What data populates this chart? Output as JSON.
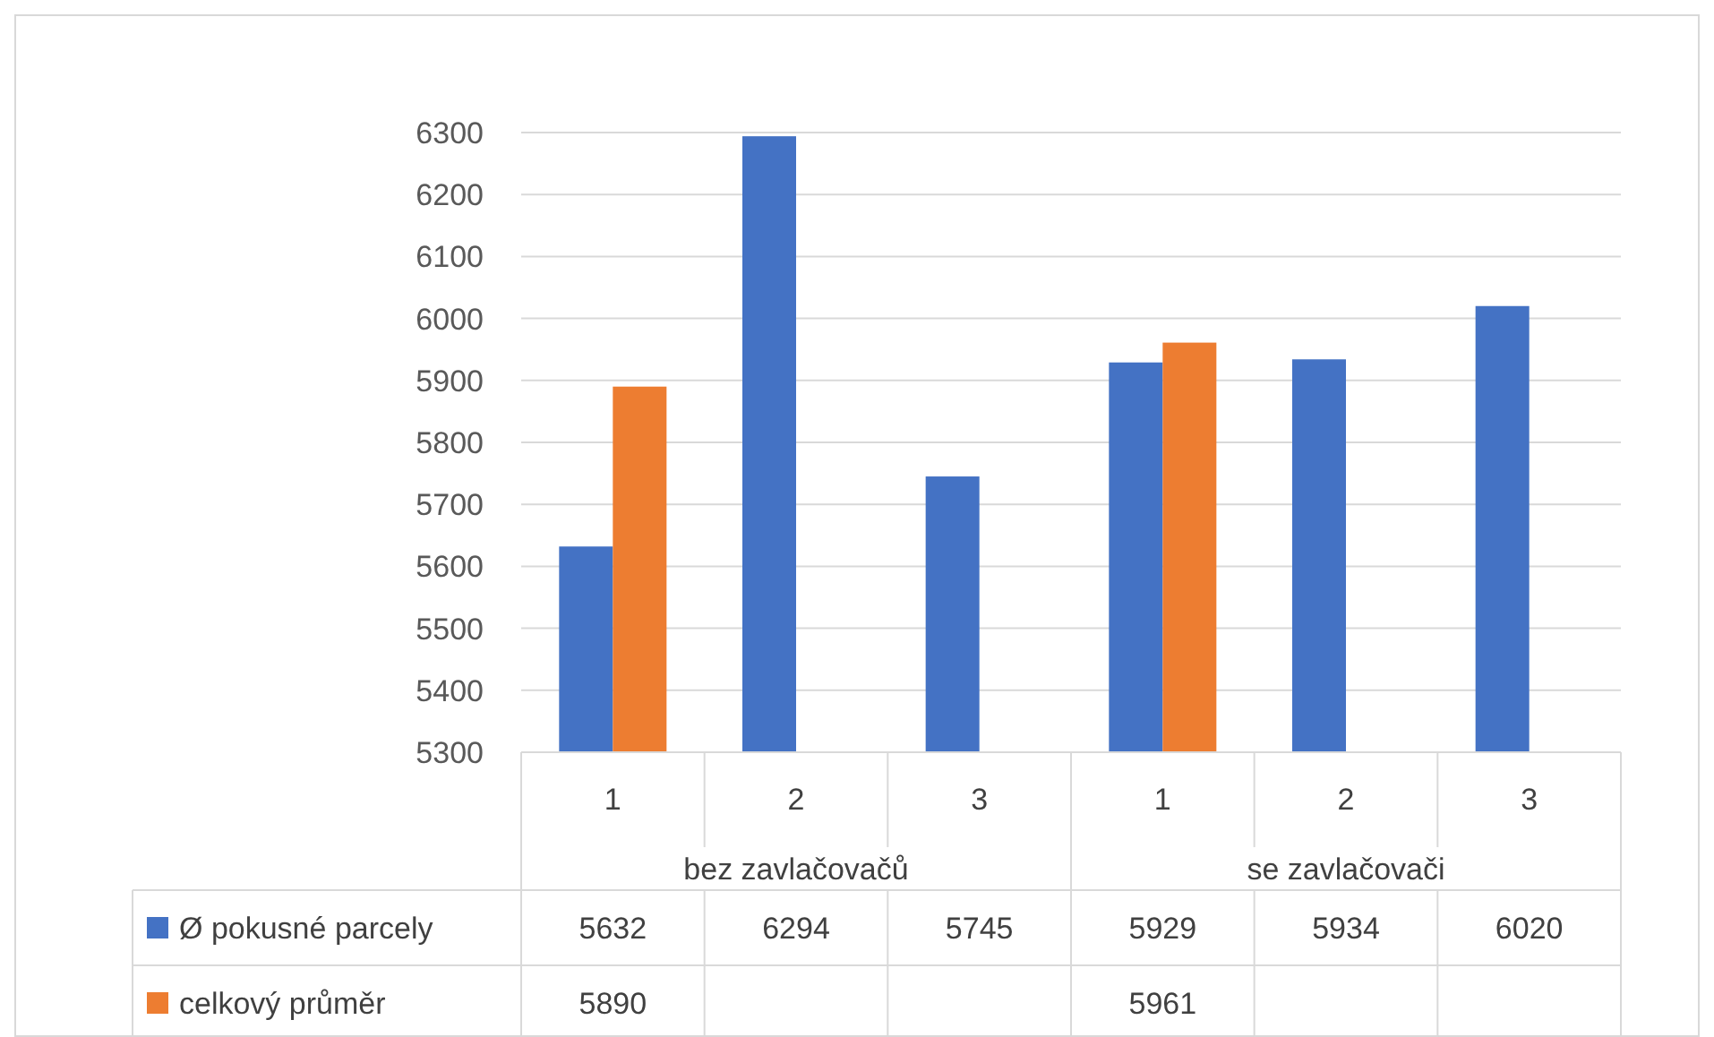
{
  "chart_data": {
    "type": "bar",
    "categories": [
      "1",
      "2",
      "3",
      "1",
      "2",
      "3"
    ],
    "series": [
      {
        "name": "Ø pokusné parcely",
        "color": "#4472c4",
        "values": [
          5632,
          6294,
          5745,
          5929,
          5934,
          6020
        ]
      },
      {
        "name": "celkový průměr",
        "color": "#ed7d31",
        "values": [
          5890,
          null,
          null,
          5961,
          null,
          null
        ]
      }
    ],
    "annotations": [
      "bez zavlačovačů",
      "se zavlačovači"
    ],
    "ylim": [
      5300,
      6300
    ],
    "yticks": [
      5300,
      5400,
      5500,
      5600,
      5700,
      5800,
      5900,
      6000,
      6100,
      6200,
      6300
    ],
    "grid": "y",
    "data_labels": true,
    "legend": "bottom left"
  }
}
